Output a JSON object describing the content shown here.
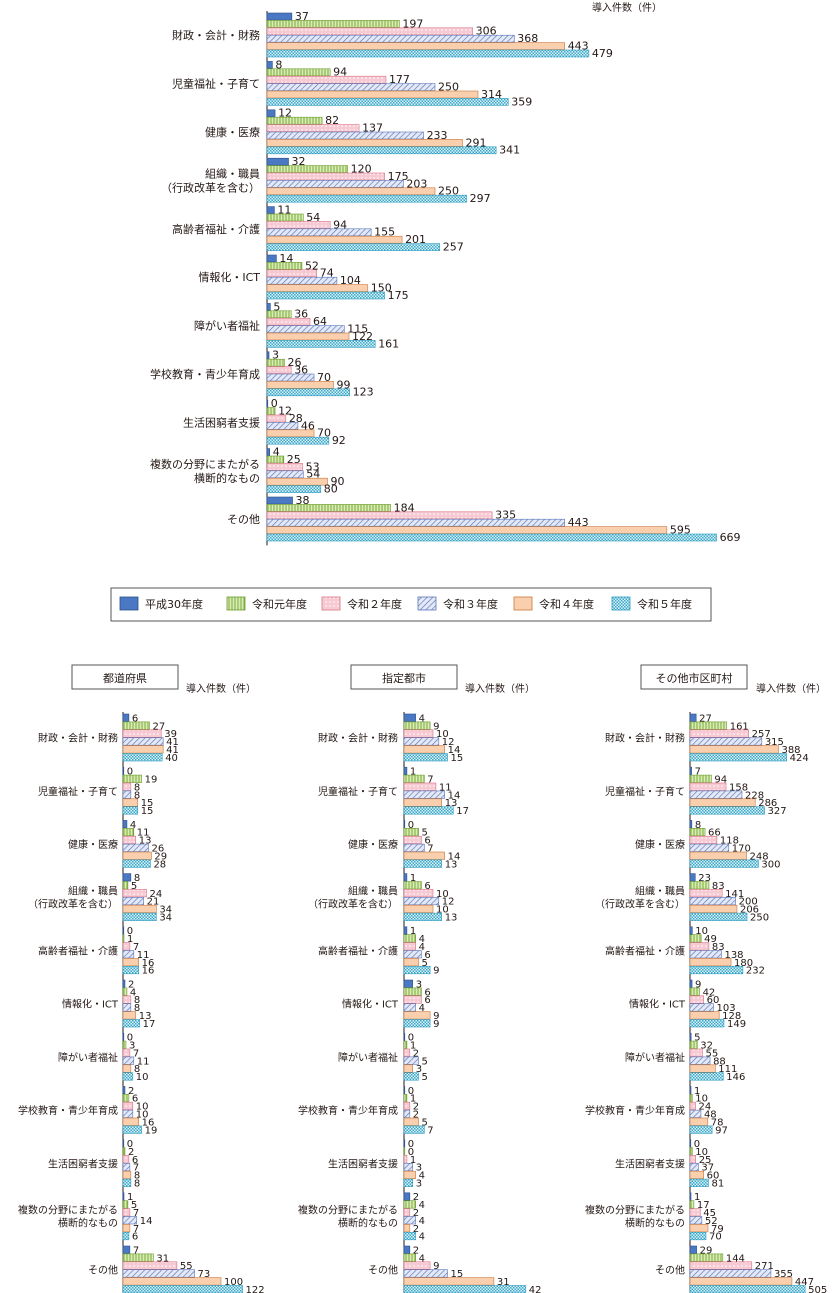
{
  "series_names": [
    "平成30年度",
    "令和元年度",
    "令和２年度",
    "令和３年度",
    "令和４年度",
    "令和５年度"
  ],
  "series_styles": [
    {
      "fill": "#4a78c2",
      "stroke": "#2c4f8c",
      "pattern": "solid"
    },
    {
      "fill": "#cfe6a8",
      "stroke": "#6b9a2c",
      "pattern": "vlines"
    },
    {
      "fill": "#f9d6dc",
      "stroke": "#d97083",
      "pattern": "dots"
    },
    {
      "fill": "#dbe3f4",
      "stroke": "#5b74b8",
      "pattern": "diagonal"
    },
    {
      "fill": "#f9d1b0",
      "stroke": "#c9773a",
      "pattern": "solid-light"
    },
    {
      "fill": "#c9ecf5",
      "stroke": "#2b9cc0",
      "pattern": "grid"
    }
  ],
  "unit_label": "導入件数（件）",
  "categories": [
    "財政・会計・財務",
    "児童福祉・子育て",
    "健康・医療",
    "組織・職員\n（行政改革を含む）",
    "高齢者福祉・介護",
    "情報化・ICT",
    "障がい者福祉",
    "学校教育・青少年育成",
    "生活困窮者支援",
    "複数の分野にまたがる\n横断的なもの",
    "その他"
  ],
  "chart_data": [
    {
      "type": "bar",
      "orientation": "horizontal",
      "title": "",
      "xlabel": "導入件数（件）",
      "legend_position": "bottom",
      "series": [
        {
          "name": "平成30年度",
          "values": [
            37,
            8,
            12,
            32,
            11,
            14,
            5,
            3,
            0,
            4,
            38
          ]
        },
        {
          "name": "令和元年度",
          "values": [
            197,
            94,
            82,
            120,
            54,
            52,
            36,
            26,
            12,
            25,
            184
          ]
        },
        {
          "name": "令和２年度",
          "values": [
            306,
            177,
            137,
            175,
            94,
            74,
            64,
            36,
            28,
            53,
            335
          ]
        },
        {
          "name": "令和３年度",
          "values": [
            368,
            250,
            233,
            203,
            155,
            104,
            115,
            70,
            46,
            54,
            443
          ]
        },
        {
          "name": "令和４年度",
          "values": [
            443,
            314,
            291,
            250,
            201,
            150,
            122,
            99,
            70,
            90,
            595
          ]
        },
        {
          "name": "令和５年度",
          "values": [
            479,
            359,
            341,
            297,
            257,
            175,
            161,
            123,
            92,
            80,
            669
          ]
        }
      ]
    },
    {
      "type": "bar",
      "orientation": "horizontal",
      "title": "都道府県",
      "xlabel": "導入件数（件）",
      "series": [
        {
          "name": "平成30年度",
          "values": [
            6,
            0,
            4,
            8,
            0,
            2,
            0,
            2,
            0,
            1,
            7
          ]
        },
        {
          "name": "令和元年度",
          "values": [
            27,
            19,
            11,
            5,
            1,
            4,
            3,
            6,
            2,
            5,
            31
          ]
        },
        {
          "name": "令和２年度",
          "values": [
            39,
            8,
            13,
            24,
            7,
            8,
            7,
            10,
            6,
            7,
            55
          ]
        },
        {
          "name": "令和３年度",
          "values": [
            41,
            8,
            26,
            21,
            11,
            8,
            11,
            10,
            7,
            14,
            73
          ]
        },
        {
          "name": "令和４年度",
          "values": [
            41,
            15,
            29,
            34,
            16,
            13,
            8,
            16,
            8,
            7,
            100
          ]
        },
        {
          "name": "令和５年度",
          "values": [
            40,
            15,
            28,
            34,
            16,
            17,
            10,
            19,
            8,
            6,
            122
          ]
        }
      ]
    },
    {
      "type": "bar",
      "orientation": "horizontal",
      "title": "指定都市",
      "xlabel": "導入件数（件）",
      "series": [
        {
          "name": "平成30年度",
          "values": [
            4,
            1,
            0,
            1,
            1,
            3,
            0,
            0,
            0,
            2,
            2
          ]
        },
        {
          "name": "令和元年度",
          "values": [
            9,
            7,
            5,
            6,
            4,
            6,
            1,
            1,
            0,
            4,
            4
          ]
        },
        {
          "name": "令和２年度",
          "values": [
            10,
            11,
            6,
            10,
            4,
            6,
            2,
            2,
            1,
            2,
            9
          ]
        },
        {
          "name": "令和３年度",
          "values": [
            12,
            14,
            7,
            12,
            6,
            4,
            5,
            2,
            3,
            4,
            15
          ]
        },
        {
          "name": "令和４年度",
          "values": [
            14,
            13,
            14,
            10,
            5,
            9,
            3,
            5,
            4,
            2,
            31
          ]
        },
        {
          "name": "令和５年度",
          "values": [
            15,
            17,
            13,
            13,
            9,
            9,
            5,
            7,
            3,
            4,
            42
          ]
        }
      ]
    },
    {
      "type": "bar",
      "orientation": "horizontal",
      "title": "その他市区町村",
      "xlabel": "導入件数（件）",
      "series": [
        {
          "name": "平成30年度",
          "values": [
            27,
            7,
            8,
            23,
            10,
            9,
            5,
            1,
            0,
            1,
            29
          ]
        },
        {
          "name": "令和元年度",
          "values": [
            161,
            94,
            66,
            83,
            49,
            42,
            32,
            10,
            10,
            17,
            144
          ]
        },
        {
          "name": "令和２年度",
          "values": [
            257,
            158,
            118,
            141,
            83,
            60,
            55,
            24,
            25,
            45,
            271
          ]
        },
        {
          "name": "令和３年度",
          "values": [
            315,
            228,
            170,
            200,
            138,
            103,
            88,
            48,
            37,
            52,
            355
          ]
        },
        {
          "name": "令和４年度",
          "values": [
            388,
            286,
            248,
            206,
            180,
            128,
            111,
            78,
            60,
            79,
            447
          ]
        },
        {
          "name": "令和５年度",
          "values": [
            424,
            327,
            300,
            250,
            232,
            149,
            146,
            97,
            81,
            70,
            505
          ]
        }
      ]
    }
  ]
}
